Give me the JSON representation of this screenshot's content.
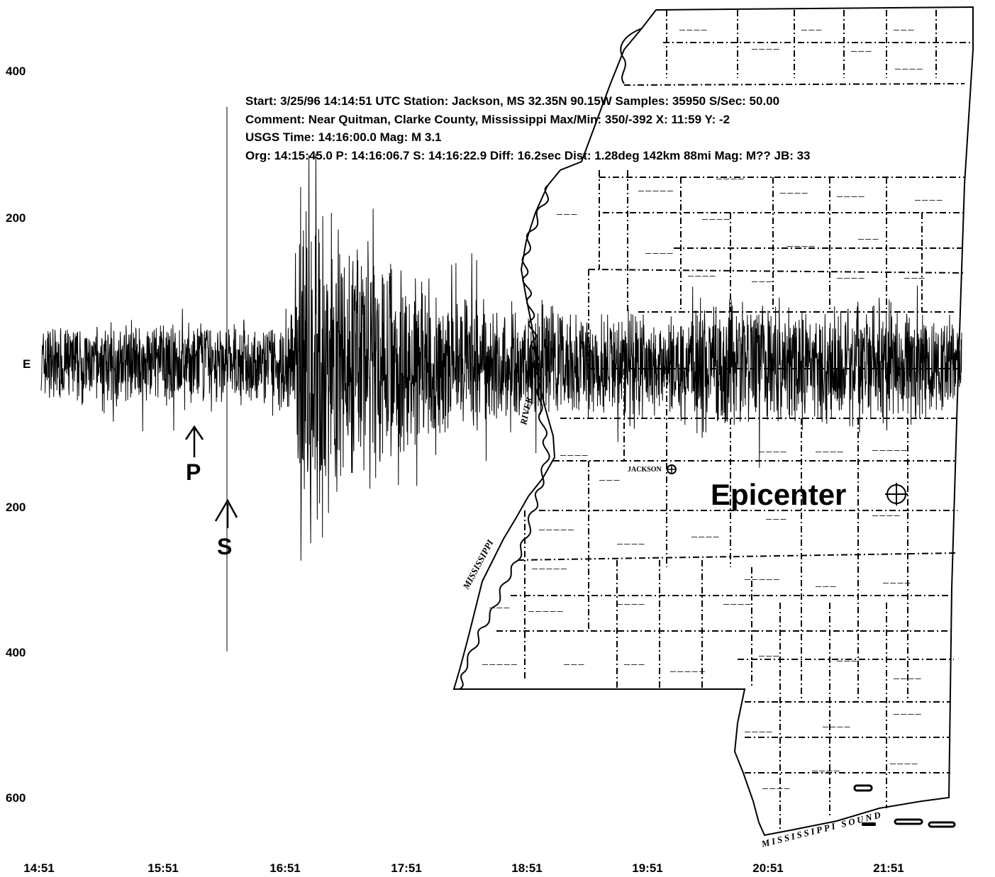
{
  "header": {
    "line1": "Start: 3/25/96 14:14:51 UTC Station: Jackson, MS 32.35N 90.15W Samples: 35950  S/Sec: 50.00",
    "line2": "Comment: Near Quitman, Clarke County, Mississippi  Max/Min: 350/-392 X: 11:59 Y: -2",
    "line3": "USGS Time: 14:16:00.0 Mag: M 3.1",
    "line4": "Org: 14:15:45.0 P: 14:16:06.7 S: 14:16:22.9 Diff: 16.2sec Dist: 1.28deg 142km 88mi  Mag: M?? JB: 33"
  },
  "chart_data": {
    "type": "line",
    "title": "",
    "xlabel": "",
    "ylabel": "",
    "channel_label": "E",
    "y_tick_labels": [
      "400",
      "200",
      "E",
      "200",
      "400",
      "600"
    ],
    "x_tick_labels": [
      "14:51",
      "15:51",
      "16:51",
      "17:51",
      "18:51",
      "19:51",
      "20:51",
      "21:51"
    ],
    "ylim": [
      -650,
      450
    ],
    "max": 350,
    "min": -392,
    "series": [
      {
        "envelope_time_s": [
          0,
          120,
          140,
          150,
          155,
          160,
          170,
          180,
          200,
          220,
          240,
          260,
          280,
          300,
          320,
          340,
          360,
          380,
          400,
          420,
          440,
          460,
          480,
          500,
          520,
          540,
          560
        ],
        "envelope_amplitude": [
          60,
          65,
          60,
          90,
          110,
          350,
          260,
          210,
          180,
          150,
          120,
          100,
          95,
          85,
          90,
          80,
          95,
          70,
          100,
          110,
          90,
          100,
          80,
          95,
          90,
          85,
          60
        ]
      }
    ],
    "picks": [
      {
        "label": "P",
        "time": "14:16:06.7"
      },
      {
        "label": "S",
        "time": "14:16:22.9"
      }
    ]
  },
  "map": {
    "epicenter_label": "Epicenter",
    "jackson_label": "JACKSON",
    "river_label_mississippi": "MISSISSIPPI",
    "river_label_river": "RIVER",
    "sound_label": "MISSISSIPPI SOUND"
  }
}
